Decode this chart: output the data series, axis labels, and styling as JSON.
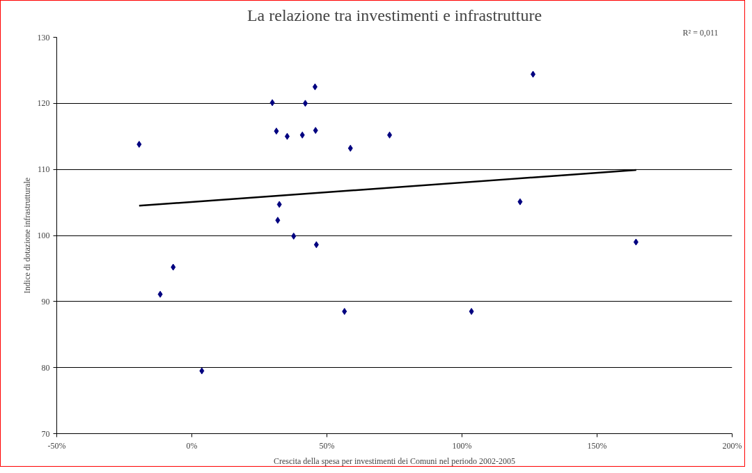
{
  "chart_data": {
    "type": "scatter",
    "title": "La relazione tra investimenti e infrastrutture",
    "xlabel": "Crescita della spesa per investimenti dei Comuni nel periodo 2002-2005",
    "ylabel": "Indice di dotazione infrastrutturale",
    "annotations": [
      "R² = 0,011"
    ],
    "xlim": [
      -50,
      200
    ],
    "ylim": [
      70,
      130
    ],
    "xticks": [
      {
        "value": -50,
        "label": "-50%"
      },
      {
        "value": 0,
        "label": "0%"
      },
      {
        "value": 50,
        "label": "50%"
      },
      {
        "value": 100,
        "label": "100%"
      },
      {
        "value": 150,
        "label": "150%"
      },
      {
        "value": 200,
        "label": "200%"
      }
    ],
    "yticks": [
      70,
      80,
      90,
      100,
      110,
      120,
      130
    ],
    "grid": "y",
    "series": [
      {
        "marker": "diamond",
        "color": "#000080",
        "x": [
          -19.5,
          -11.7,
          -6.9,
          3.7,
          29.8,
          31.3,
          35.3,
          40.9,
          42.0,
          45.6,
          45.8,
          58.7,
          73.2,
          32.4,
          31.8,
          37.7,
          46.1,
          56.5,
          126.3,
          121.5,
          164.4,
          103.5
        ],
        "values": [
          113.8,
          91.1,
          95.2,
          79.5,
          120.1,
          115.8,
          115.0,
          115.2,
          120.0,
          122.5,
          115.9,
          113.2,
          115.2,
          104.7,
          102.3,
          99.9,
          98.6,
          88.5,
          124.4,
          105.1,
          99.0,
          88.5
        ]
      },
      {
        "type": "line",
        "marker": "none",
        "color": "#000000",
        "x": [
          -19.5,
          164.5
        ],
        "values": [
          104.5,
          109.9
        ]
      }
    ]
  }
}
